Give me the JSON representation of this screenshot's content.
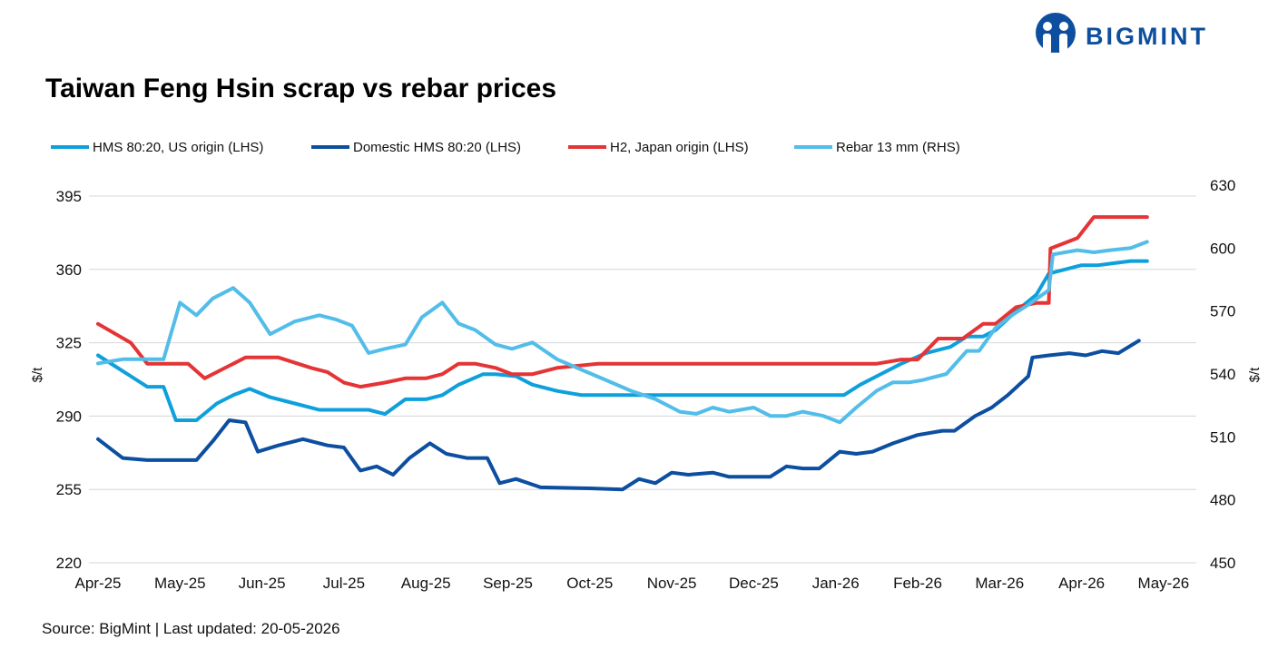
{
  "brand": {
    "name": "BIGMINT"
  },
  "footer": {
    "source": "Source: BigMint |  Last updated: 20-05-2026"
  },
  "chart_data": {
    "type": "line",
    "title": "Taiwan Feng Hsin scrap vs rebar prices",
    "ylabel_left": "$/t",
    "ylabel_right": "$/t",
    "ylim_left": [
      220,
      395
    ],
    "yticks_left": [
      220,
      255,
      290,
      325,
      360,
      395
    ],
    "ylim_right": [
      450,
      630
    ],
    "yticks_right": [
      450,
      480,
      510,
      540,
      570,
      600,
      630
    ],
    "x_labels": [
      "Apr-25",
      "May-25",
      "Jun-25",
      "Jul-25",
      "Aug-25",
      "Sep-25",
      "Oct-25",
      "Nov-25",
      "Dec-25",
      "Jan-26",
      "Feb-26",
      "Mar-26",
      "Apr-26",
      "May-26"
    ],
    "legend_position": "top-left",
    "grid": true,
    "series": [
      {
        "name": "HMS 80:20, US origin (LHS)",
        "axis": "left",
        "color": "#0ea0dc",
        "points": [
          [
            0,
            319
          ],
          [
            0.2,
            314
          ],
          [
            0.4,
            309
          ],
          [
            0.6,
            304
          ],
          [
            0.8,
            304
          ],
          [
            0.95,
            288
          ],
          [
            1.2,
            288
          ],
          [
            1.45,
            296
          ],
          [
            1.65,
            300
          ],
          [
            1.85,
            303
          ],
          [
            2.1,
            299
          ],
          [
            2.4,
            296
          ],
          [
            2.7,
            293
          ],
          [
            3.0,
            293
          ],
          [
            3.3,
            293
          ],
          [
            3.5,
            291
          ],
          [
            3.75,
            298
          ],
          [
            4.0,
            298
          ],
          [
            4.2,
            300
          ],
          [
            4.4,
            305
          ],
          [
            4.7,
            310
          ],
          [
            4.85,
            310
          ],
          [
            5.1,
            309
          ],
          [
            5.3,
            305
          ],
          [
            5.6,
            302
          ],
          [
            5.9,
            300
          ],
          [
            6.5,
            300
          ],
          [
            7.0,
            300
          ],
          [
            7.5,
            300
          ],
          [
            8.0,
            300
          ],
          [
            8.5,
            300
          ],
          [
            9.0,
            300
          ],
          [
            9.1,
            300
          ],
          [
            9.3,
            305
          ],
          [
            9.5,
            309
          ],
          [
            9.8,
            315
          ],
          [
            10.1,
            320
          ],
          [
            10.4,
            323
          ],
          [
            10.6,
            328
          ],
          [
            10.8,
            328
          ],
          [
            10.95,
            331
          ],
          [
            11.2,
            340
          ],
          [
            11.45,
            348
          ],
          [
            11.6,
            358
          ],
          [
            11.8,
            360
          ],
          [
            12.0,
            362
          ],
          [
            12.2,
            362
          ],
          [
            12.4,
            363
          ],
          [
            12.6,
            364
          ],
          [
            12.8,
            364
          ]
        ]
      },
      {
        "name": "Domestic HMS 80:20 (LHS)",
        "axis": "left",
        "color": "#0c4ea0",
        "points": [
          [
            0,
            279
          ],
          [
            0.3,
            270
          ],
          [
            0.6,
            269
          ],
          [
            0.8,
            269
          ],
          [
            1.0,
            269
          ],
          [
            1.2,
            269
          ],
          [
            1.4,
            278
          ],
          [
            1.6,
            288
          ],
          [
            1.8,
            287
          ],
          [
            1.95,
            273
          ],
          [
            2.2,
            276
          ],
          [
            2.5,
            279
          ],
          [
            2.8,
            276
          ],
          [
            3.0,
            275
          ],
          [
            3.2,
            264
          ],
          [
            3.4,
            266
          ],
          [
            3.6,
            262
          ],
          [
            3.8,
            270
          ],
          [
            4.05,
            277
          ],
          [
            4.25,
            272
          ],
          [
            4.5,
            270
          ],
          [
            4.75,
            270
          ],
          [
            4.9,
            258
          ],
          [
            5.1,
            260
          ],
          [
            5.4,
            256
          ],
          [
            6.0,
            255.5
          ],
          [
            6.4,
            255
          ],
          [
            6.6,
            260
          ],
          [
            6.8,
            258
          ],
          [
            7.0,
            263
          ],
          [
            7.2,
            262
          ],
          [
            7.5,
            263
          ],
          [
            7.7,
            261
          ],
          [
            8.0,
            261
          ],
          [
            8.2,
            261
          ],
          [
            8.4,
            266
          ],
          [
            8.6,
            265
          ],
          [
            8.8,
            265
          ],
          [
            9.05,
            273
          ],
          [
            9.25,
            272
          ],
          [
            9.45,
            273
          ],
          [
            9.7,
            277
          ],
          [
            10.0,
            281
          ],
          [
            10.3,
            283
          ],
          [
            10.45,
            283
          ],
          [
            10.7,
            290
          ],
          [
            10.9,
            294
          ],
          [
            11.1,
            300
          ],
          [
            11.35,
            309
          ],
          [
            11.4,
            318
          ],
          [
            11.6,
            319
          ],
          [
            11.85,
            320
          ],
          [
            12.05,
            319
          ],
          [
            12.25,
            321
          ],
          [
            12.45,
            320
          ],
          [
            12.7,
            326
          ]
        ]
      },
      {
        "name": "H2, Japan origin (LHS)",
        "axis": "left",
        "color": "#e53435",
        "points": [
          [
            0,
            334
          ],
          [
            0.4,
            325
          ],
          [
            0.6,
            315
          ],
          [
            0.9,
            315
          ],
          [
            1.1,
            315
          ],
          [
            1.3,
            308
          ],
          [
            1.5,
            312
          ],
          [
            1.8,
            318
          ],
          [
            2.0,
            318
          ],
          [
            2.2,
            318
          ],
          [
            2.6,
            313
          ],
          [
            2.8,
            311
          ],
          [
            3.0,
            306
          ],
          [
            3.2,
            304
          ],
          [
            3.5,
            306
          ],
          [
            3.75,
            308
          ],
          [
            4.0,
            308
          ],
          [
            4.2,
            310
          ],
          [
            4.4,
            315
          ],
          [
            4.6,
            315
          ],
          [
            4.85,
            313
          ],
          [
            5.05,
            310
          ],
          [
            5.3,
            310
          ],
          [
            5.6,
            313
          ],
          [
            6.1,
            315
          ],
          [
            7.0,
            315
          ],
          [
            8.0,
            315
          ],
          [
            8.8,
            315
          ],
          [
            9.0,
            315
          ],
          [
            9.2,
            315
          ],
          [
            9.5,
            315
          ],
          [
            9.8,
            317
          ],
          [
            10.0,
            317
          ],
          [
            10.25,
            327
          ],
          [
            10.55,
            327
          ],
          [
            10.8,
            334
          ],
          [
            10.95,
            334
          ],
          [
            11.2,
            342
          ],
          [
            11.45,
            344
          ],
          [
            11.6,
            344
          ],
          [
            11.62,
            370
          ],
          [
            11.95,
            375
          ],
          [
            12.15,
            385
          ],
          [
            12.5,
            385
          ],
          [
            12.8,
            385
          ]
        ]
      },
      {
        "name": "Rebar 13 mm (RHS)",
        "axis": "right",
        "color": "#53bde9",
        "points": [
          [
            0,
            545
          ],
          [
            0.3,
            547
          ],
          [
            0.55,
            547
          ],
          [
            0.8,
            547
          ],
          [
            1.0,
            574
          ],
          [
            1.2,
            568
          ],
          [
            1.4,
            576
          ],
          [
            1.65,
            581
          ],
          [
            1.85,
            574
          ],
          [
            2.1,
            559
          ],
          [
            2.4,
            565
          ],
          [
            2.7,
            568
          ],
          [
            2.9,
            566
          ],
          [
            3.1,
            563
          ],
          [
            3.3,
            550
          ],
          [
            3.5,
            552
          ],
          [
            3.75,
            554
          ],
          [
            3.95,
            567
          ],
          [
            4.2,
            574
          ],
          [
            4.4,
            564
          ],
          [
            4.6,
            561
          ],
          [
            4.85,
            554
          ],
          [
            5.05,
            552
          ],
          [
            5.3,
            555
          ],
          [
            5.6,
            547
          ],
          [
            5.9,
            542
          ],
          [
            6.2,
            537
          ],
          [
            6.5,
            532
          ],
          [
            6.8,
            528
          ],
          [
            7.1,
            522
          ],
          [
            7.3,
            521
          ],
          [
            7.5,
            524
          ],
          [
            7.7,
            522
          ],
          [
            8.0,
            524
          ],
          [
            8.2,
            520
          ],
          [
            8.4,
            520
          ],
          [
            8.6,
            522
          ],
          [
            8.85,
            520
          ],
          [
            9.05,
            517
          ],
          [
            9.25,
            524
          ],
          [
            9.5,
            532
          ],
          [
            9.7,
            536
          ],
          [
            9.9,
            536
          ],
          [
            10.05,
            537
          ],
          [
            10.35,
            540
          ],
          [
            10.6,
            551
          ],
          [
            10.75,
            551
          ],
          [
            10.95,
            562
          ],
          [
            11.15,
            568
          ],
          [
            11.35,
            573
          ],
          [
            11.6,
            580
          ],
          [
            11.65,
            597
          ],
          [
            11.95,
            599
          ],
          [
            12.15,
            598
          ],
          [
            12.35,
            599
          ],
          [
            12.6,
            600
          ],
          [
            12.8,
            603
          ]
        ]
      }
    ]
  }
}
